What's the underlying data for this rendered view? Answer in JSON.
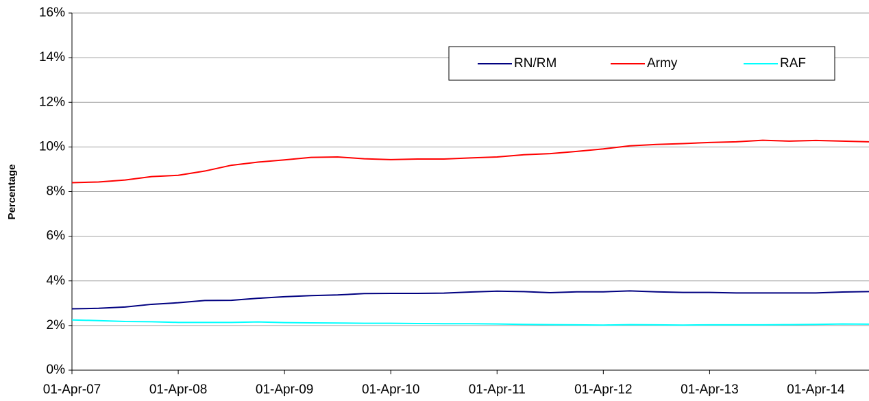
{
  "chart_data": {
    "type": "line",
    "y_label": "Percentage",
    "categories": [
      "01-Apr-07",
      null,
      null,
      null,
      "01-Apr-08",
      null,
      null,
      null,
      "01-Apr-09",
      null,
      null,
      null,
      "01-Apr-10",
      null,
      null,
      null,
      "01-Apr-11",
      null,
      null,
      null,
      "01-Apr-12",
      null,
      null,
      null,
      "01-Apr-13",
      null,
      null,
      null,
      "01-Apr-14",
      null,
      null
    ],
    "series": [
      {
        "name": "RN/RM",
        "color": "#000080",
        "values": [
          2.75,
          2.77,
          2.83,
          2.95,
          3.02,
          3.12,
          3.13,
          3.22,
          3.29,
          3.34,
          3.37,
          3.43,
          3.44,
          3.44,
          3.45,
          3.5,
          3.54,
          3.52,
          3.47,
          3.51,
          3.51,
          3.55,
          3.51,
          3.48,
          3.48,
          3.46,
          3.46,
          3.46,
          3.46,
          3.5,
          3.52
        ]
      },
      {
        "name": "Army",
        "color": "#ff0000",
        "values": [
          8.4,
          8.43,
          8.52,
          8.67,
          8.73,
          8.92,
          9.18,
          9.32,
          9.42,
          9.53,
          9.55,
          9.47,
          9.43,
          9.46,
          9.46,
          9.51,
          9.55,
          9.65,
          9.7,
          9.8,
          9.91,
          10.05,
          10.11,
          10.15,
          10.2,
          10.23,
          10.3,
          10.26,
          10.29,
          10.26,
          10.23
        ]
      },
      {
        "name": "RAF",
        "color": "#00ffff",
        "values": [
          2.25,
          2.22,
          2.18,
          2.17,
          2.14,
          2.14,
          2.14,
          2.16,
          2.13,
          2.12,
          2.11,
          2.1,
          2.1,
          2.09,
          2.08,
          2.08,
          2.07,
          2.05,
          2.04,
          2.03,
          2.02,
          2.04,
          2.03,
          2.02,
          2.03,
          2.03,
          2.03,
          2.04,
          2.05,
          2.07,
          2.06
        ]
      }
    ],
    "ylim": [
      0,
      16
    ],
    "yticks": [
      {
        "value": 0,
        "label": "0%"
      },
      {
        "value": 2,
        "label": "2%"
      },
      {
        "value": 4,
        "label": "4%"
      },
      {
        "value": 6,
        "label": "6%"
      },
      {
        "value": 8,
        "label": "8%"
      },
      {
        "value": 10,
        "label": "10%"
      },
      {
        "value": 12,
        "label": "12%"
      },
      {
        "value": 14,
        "label": "14%"
      },
      {
        "value": 16,
        "label": "16%"
      }
    ],
    "grid": true,
    "legend": "upper right"
  }
}
